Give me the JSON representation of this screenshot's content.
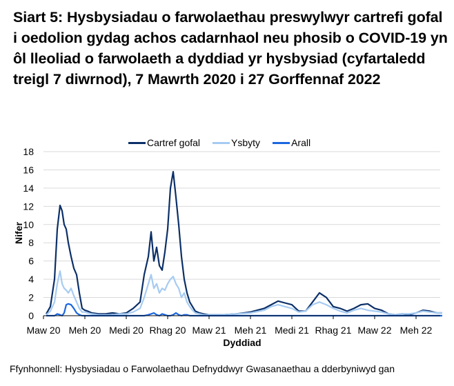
{
  "title": "Siart 5: Hysbysiadau o farwolaethau preswylwyr cartrefi gofal i oedolion gydag achos cadarnhaol neu phosib o COVID-19 yn ôl lleoliad o farwolaeth a dyddiad yr hysbysiad (cyfartaledd treigl 7 diwrnod), 7 Mawrth 2020 i 27 Gorffennaf 2022",
  "source": "Ffynhonnell: Hysbysiadau o Farwolaethau Defnyddwyr Gwasanaethau a dderbyniwyd gan",
  "legend": [
    {
      "label": "Cartref gofal",
      "color": "#0b2f67"
    },
    {
      "label": "Ysbyty",
      "color": "#a6cbf2"
    },
    {
      "label": "Arall",
      "color": "#1a66e0"
    }
  ],
  "chart_data": {
    "type": "line",
    "title": "Siart 5: Hysbysiadau o farwolaethau preswylwyr cartrefi gofal i oedolion gydag achos cadarnhaol neu phosib o COVID-19 yn ôl lleoliad o farwolaeth a dyddiad yr hysbysiad (cyfartaledd treigl 7 diwrnod), 7 Mawrth 2020 i 27 Gorffennaf 2022",
    "xlabel": "Dyddiad",
    "ylabel": "Nifer",
    "ylim": [
      0,
      18
    ],
    "yticks": [
      0,
      2,
      4,
      6,
      8,
      10,
      12,
      14,
      16,
      18
    ],
    "xtick_labels": [
      "Maw 20",
      "Meh 20",
      "Medi 20",
      "Rhag 20",
      "Maw 21",
      "Meh 21",
      "Medi 21",
      "Rhag 21",
      "Maw 22",
      "Meh 22"
    ],
    "grid": true,
    "legend_position": "top",
    "x_unit": "months since 1 Mar 2020",
    "x": [
      0.2,
      0.5,
      0.8,
      1.0,
      1.2,
      1.35,
      1.5,
      1.65,
      1.8,
      2.0,
      2.2,
      2.4,
      2.6,
      2.8,
      3.0,
      3.2,
      3.5,
      4,
      4.5,
      5,
      5.5,
      6,
      6.5,
      7,
      7.3,
      7.6,
      7.8,
      8.0,
      8.2,
      8.4,
      8.6,
      8.8,
      9.0,
      9.2,
      9.4,
      9.6,
      9.8,
      10.0,
      10.2,
      10.4,
      10.6,
      10.8,
      11.0,
      11.3,
      11.6,
      12,
      13,
      14,
      15,
      16,
      16.5,
      17,
      17.5,
      18,
      18.5,
      19,
      19.5,
      20,
      20.5,
      21,
      21.5,
      22,
      22.5,
      23,
      23.5,
      24,
      24.5,
      25,
      25.5,
      26,
      26.5,
      27,
      27.5,
      28,
      28.5,
      28.9
    ],
    "series": [
      {
        "name": "Cartref gofal",
        "color": "#0b2f67",
        "values": [
          0.2,
          1.0,
          4.0,
          9.5,
          12.1,
          11.5,
          10.0,
          9.5,
          8.0,
          6.5,
          5.2,
          4.5,
          2.5,
          0.8,
          0.6,
          0.5,
          0.3,
          0.2,
          0.2,
          0.3,
          0.2,
          0.3,
          0.8,
          1.5,
          4.5,
          6.5,
          9.2,
          6.0,
          7.5,
          5.5,
          5.0,
          7.0,
          9.5,
          14.0,
          15.8,
          13.0,
          10.0,
          6.5,
          4.0,
          2.5,
          1.5,
          1.0,
          0.5,
          0.3,
          0.2,
          0.1,
          0.1,
          0.2,
          0.4,
          0.8,
          1.2,
          1.6,
          1.4,
          1.2,
          0.5,
          0.5,
          1.5,
          2.5,
          2.0,
          1.0,
          0.8,
          0.5,
          0.8,
          1.2,
          1.3,
          0.8,
          0.6,
          0.2,
          0.1,
          0.2,
          0.1,
          0.3,
          0.6,
          0.5,
          0.3,
          0.3
        ]
      },
      {
        "name": "Ysbyty",
        "color": "#a6cbf2",
        "values": [
          0.1,
          0.5,
          1.5,
          3.5,
          4.9,
          3.5,
          3.0,
          2.8,
          2.5,
          3.0,
          2.2,
          1.5,
          0.8,
          0.4,
          0.4,
          0.3,
          0.2,
          0.1,
          0.1,
          0.1,
          0.2,
          0.2,
          0.4,
          0.8,
          2.0,
          3.5,
          4.5,
          3.0,
          3.5,
          2.5,
          3.0,
          2.8,
          3.5,
          4.0,
          4.3,
          3.5,
          3.0,
          2.0,
          2.5,
          1.5,
          1.0,
          0.6,
          0.3,
          0.2,
          0.1,
          0.1,
          0.1,
          0.2,
          0.3,
          0.6,
          1.0,
          1.2,
          1.0,
          0.8,
          0.4,
          0.5,
          1.2,
          1.5,
          1.2,
          0.8,
          0.5,
          0.3,
          0.6,
          0.8,
          0.6,
          0.5,
          0.4,
          0.2,
          0.1,
          0.2,
          0.2,
          0.3,
          0.5,
          0.4,
          0.3,
          0.3
        ]
      },
      {
        "name": "Arall",
        "color": "#1a66e0",
        "values": [
          0,
          0,
          0,
          0.2,
          0.1,
          0,
          0.3,
          1.2,
          1.3,
          1.2,
          0.8,
          0.3,
          0.1,
          0,
          0,
          0,
          0,
          0,
          0,
          0,
          0,
          0,
          0,
          0,
          0,
          0.1,
          0.2,
          0.3,
          0.1,
          0,
          0.2,
          0.1,
          0,
          0,
          0.1,
          0.3,
          0.1,
          0,
          0.1,
          0.1,
          0,
          0,
          0,
          0,
          0,
          0,
          0,
          0,
          0,
          0,
          0,
          0,
          0,
          0,
          0,
          0,
          0,
          0,
          0,
          0,
          0,
          0,
          0,
          0,
          0,
          0,
          0,
          0,
          0,
          0,
          0,
          0,
          0,
          0,
          0,
          0
        ]
      }
    ]
  }
}
